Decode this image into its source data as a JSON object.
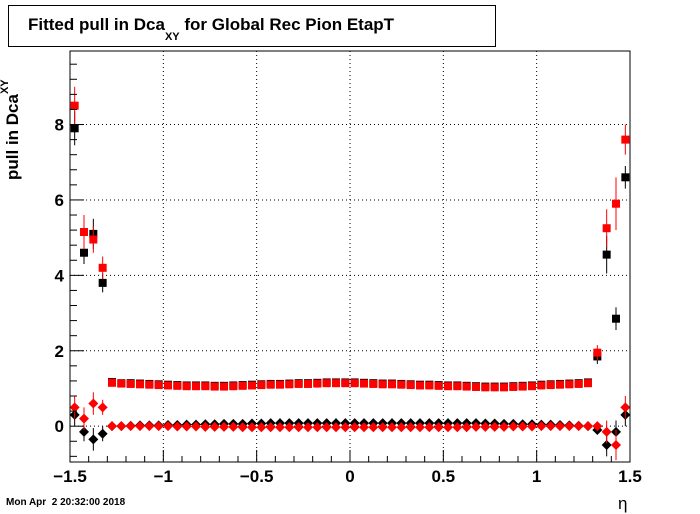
{
  "chart_data": {
    "type": "scatter",
    "title": "Fitted pull in Dca",
    "title_subscript": "XY",
    "title_suffix": " for Global Rec Pion EtapT",
    "ylabel": "pull in Dca",
    "ylabel_subscript": "XY",
    "xlabel": "η",
    "xlim": [
      -1.5,
      1.5
    ],
    "ylim": [
      -0.95,
      9.95
    ],
    "grid": true,
    "x_ticks": [
      -1.5,
      -1,
      -0.5,
      0,
      0.5,
      1,
      1.5
    ],
    "x_tick_labels": [
      "−1.5",
      "−1",
      "−0.5",
      "0",
      "0.5",
      "1",
      "1.5"
    ],
    "y_ticks": [
      0,
      2,
      4,
      6,
      8
    ],
    "y_tick_labels": [
      "0",
      "2",
      "4",
      "6",
      "8"
    ],
    "series": [
      {
        "marker": "square",
        "color": "#000000",
        "x": [
          -1.475,
          -1.425,
          -1.375,
          -1.325,
          -1.275,
          -1.225,
          -1.175,
          -1.125,
          -1.075,
          -1.025,
          -0.975,
          -0.925,
          -0.875,
          -0.825,
          -0.775,
          -0.725,
          -0.675,
          -0.625,
          -0.575,
          -0.525,
          -0.475,
          -0.425,
          -0.375,
          -0.325,
          -0.275,
          -0.225,
          -0.175,
          -0.125,
          -0.075,
          -0.025,
          0.025,
          0.075,
          0.125,
          0.175,
          0.225,
          0.275,
          0.325,
          0.375,
          0.425,
          0.475,
          0.525,
          0.575,
          0.625,
          0.675,
          0.725,
          0.775,
          0.825,
          0.875,
          0.925,
          0.975,
          1.025,
          1.075,
          1.125,
          1.175,
          1.225,
          1.275,
          1.325,
          1.375,
          1.425,
          1.475
        ],
        "y": [
          7.9,
          4.6,
          5.1,
          3.8,
          1.17,
          1.14,
          1.14,
          1.13,
          1.12,
          1.11,
          1.1,
          1.09,
          1.08,
          1.08,
          1.08,
          1.07,
          1.07,
          1.08,
          1.09,
          1.1,
          1.11,
          1.12,
          1.12,
          1.13,
          1.14,
          1.14,
          1.15,
          1.16,
          1.16,
          1.16,
          1.16,
          1.15,
          1.14,
          1.13,
          1.13,
          1.12,
          1.11,
          1.1,
          1.1,
          1.09,
          1.08,
          1.08,
          1.07,
          1.06,
          1.05,
          1.05,
          1.05,
          1.06,
          1.07,
          1.08,
          1.1,
          1.11,
          1.12,
          1.13,
          1.14,
          1.16,
          1.85,
          4.55,
          2.85,
          6.6
        ],
        "err": [
          0.45,
          0.3,
          0.4,
          0.25,
          0.04,
          0.03,
          0.03,
          0.03,
          0.03,
          0.03,
          0.03,
          0.03,
          0.03,
          0.03,
          0.03,
          0.03,
          0.03,
          0.03,
          0.03,
          0.03,
          0.03,
          0.03,
          0.03,
          0.03,
          0.03,
          0.03,
          0.03,
          0.03,
          0.03,
          0.03,
          0.03,
          0.03,
          0.03,
          0.03,
          0.03,
          0.03,
          0.03,
          0.03,
          0.03,
          0.03,
          0.03,
          0.03,
          0.03,
          0.03,
          0.03,
          0.03,
          0.03,
          0.03,
          0.03,
          0.03,
          0.03,
          0.03,
          0.03,
          0.03,
          0.03,
          0.04,
          0.2,
          0.5,
          0.3,
          0.3
        ]
      },
      {
        "marker": "square",
        "color": "#ff0000",
        "x": [
          -1.475,
          -1.425,
          -1.375,
          -1.325,
          -1.275,
          -1.225,
          -1.175,
          -1.125,
          -1.075,
          -1.025,
          -0.975,
          -0.925,
          -0.875,
          -0.825,
          -0.775,
          -0.725,
          -0.675,
          -0.625,
          -0.575,
          -0.525,
          -0.475,
          -0.425,
          -0.375,
          -0.325,
          -0.275,
          -0.225,
          -0.175,
          -0.125,
          -0.075,
          -0.025,
          0.025,
          0.075,
          0.125,
          0.175,
          0.225,
          0.275,
          0.325,
          0.375,
          0.425,
          0.475,
          0.525,
          0.575,
          0.625,
          0.675,
          0.725,
          0.775,
          0.825,
          0.875,
          0.925,
          0.975,
          1.025,
          1.075,
          1.125,
          1.175,
          1.225,
          1.275,
          1.325,
          1.375,
          1.425,
          1.475
        ],
        "y": [
          8.5,
          5.15,
          4.95,
          4.2,
          1.15,
          1.13,
          1.12,
          1.11,
          1.1,
          1.09,
          1.08,
          1.07,
          1.06,
          1.06,
          1.06,
          1.05,
          1.05,
          1.06,
          1.07,
          1.08,
          1.09,
          1.1,
          1.1,
          1.11,
          1.12,
          1.12,
          1.13,
          1.14,
          1.14,
          1.14,
          1.14,
          1.13,
          1.12,
          1.11,
          1.11,
          1.1,
          1.09,
          1.08,
          1.08,
          1.07,
          1.06,
          1.06,
          1.05,
          1.04,
          1.03,
          1.03,
          1.03,
          1.04,
          1.05,
          1.06,
          1.08,
          1.09,
          1.1,
          1.11,
          1.12,
          1.14,
          1.95,
          5.25,
          5.9,
          7.6
        ],
        "err": [
          0.5,
          0.45,
          0.35,
          0.3,
          0.04,
          0.03,
          0.03,
          0.03,
          0.03,
          0.03,
          0.03,
          0.03,
          0.03,
          0.03,
          0.03,
          0.03,
          0.03,
          0.03,
          0.03,
          0.03,
          0.03,
          0.03,
          0.03,
          0.03,
          0.03,
          0.03,
          0.03,
          0.03,
          0.03,
          0.03,
          0.03,
          0.03,
          0.03,
          0.03,
          0.03,
          0.03,
          0.03,
          0.03,
          0.03,
          0.03,
          0.03,
          0.03,
          0.03,
          0.03,
          0.03,
          0.03,
          0.03,
          0.03,
          0.03,
          0.03,
          0.03,
          0.03,
          0.03,
          0.03,
          0.03,
          0.04,
          0.2,
          0.5,
          0.7,
          0.4
        ]
      },
      {
        "marker": "diamond",
        "color": "#000000",
        "x": [
          -1.475,
          -1.425,
          -1.375,
          -1.325,
          -1.275,
          -1.225,
          -1.175,
          -1.125,
          -1.075,
          -1.025,
          -0.975,
          -0.925,
          -0.875,
          -0.825,
          -0.775,
          -0.725,
          -0.675,
          -0.625,
          -0.575,
          -0.525,
          -0.475,
          -0.425,
          -0.375,
          -0.325,
          -0.275,
          -0.225,
          -0.175,
          -0.125,
          -0.075,
          -0.025,
          0.025,
          0.075,
          0.125,
          0.175,
          0.225,
          0.275,
          0.325,
          0.375,
          0.425,
          0.475,
          0.525,
          0.575,
          0.625,
          0.675,
          0.725,
          0.775,
          0.825,
          0.875,
          0.925,
          0.975,
          1.025,
          1.075,
          1.125,
          1.175,
          1.225,
          1.275,
          1.325,
          1.375,
          1.425,
          1.475
        ],
        "y": [
          0.3,
          -0.15,
          -0.35,
          -0.2,
          0.0,
          0.0,
          0.01,
          0.02,
          0.02,
          0.02,
          0.03,
          0.03,
          0.04,
          0.04,
          0.05,
          0.05,
          0.06,
          0.06,
          0.06,
          0.07,
          0.07,
          0.08,
          0.08,
          0.08,
          0.08,
          0.08,
          0.08,
          0.08,
          0.08,
          0.08,
          0.08,
          0.08,
          0.08,
          0.08,
          0.08,
          0.08,
          0.08,
          0.08,
          0.08,
          0.08,
          0.08,
          0.08,
          0.08,
          0.08,
          0.07,
          0.07,
          0.06,
          0.06,
          0.05,
          0.05,
          0.04,
          0.04,
          0.03,
          0.02,
          0.01,
          0.0,
          -0.1,
          -0.5,
          -0.15,
          0.3
        ],
        "err": [
          0.3,
          0.25,
          0.3,
          0.2,
          0.02,
          0.02,
          0.02,
          0.02,
          0.02,
          0.02,
          0.02,
          0.02,
          0.02,
          0.02,
          0.02,
          0.02,
          0.02,
          0.02,
          0.02,
          0.02,
          0.02,
          0.02,
          0.02,
          0.02,
          0.02,
          0.02,
          0.02,
          0.02,
          0.02,
          0.02,
          0.02,
          0.02,
          0.02,
          0.02,
          0.02,
          0.02,
          0.02,
          0.02,
          0.02,
          0.02,
          0.02,
          0.02,
          0.02,
          0.02,
          0.02,
          0.02,
          0.02,
          0.02,
          0.02,
          0.02,
          0.02,
          0.02,
          0.02,
          0.02,
          0.02,
          0.02,
          0.1,
          0.3,
          0.3,
          0.3
        ]
      },
      {
        "marker": "diamond",
        "color": "#ff0000",
        "x": [
          -1.475,
          -1.425,
          -1.375,
          -1.325,
          -1.275,
          -1.225,
          -1.175,
          -1.125,
          -1.075,
          -1.025,
          -0.975,
          -0.925,
          -0.875,
          -0.825,
          -0.775,
          -0.725,
          -0.675,
          -0.625,
          -0.575,
          -0.525,
          -0.475,
          -0.425,
          -0.375,
          -0.325,
          -0.275,
          -0.225,
          -0.175,
          -0.125,
          -0.075,
          -0.025,
          0.025,
          0.075,
          0.125,
          0.175,
          0.225,
          0.275,
          0.325,
          0.375,
          0.425,
          0.475,
          0.525,
          0.575,
          0.625,
          0.675,
          0.725,
          0.775,
          0.825,
          0.875,
          0.925,
          0.975,
          1.025,
          1.075,
          1.125,
          1.175,
          1.225,
          1.275,
          1.325,
          1.375,
          1.425,
          1.475
        ],
        "y": [
          0.5,
          0.2,
          0.6,
          0.5,
          0.0,
          0.0,
          0.0,
          0.0,
          0.0,
          0.0,
          0.0,
          -0.01,
          -0.01,
          -0.01,
          -0.02,
          -0.02,
          -0.02,
          -0.02,
          -0.03,
          -0.03,
          -0.03,
          -0.03,
          -0.03,
          -0.03,
          -0.03,
          -0.03,
          -0.03,
          -0.03,
          -0.03,
          -0.03,
          -0.03,
          -0.03,
          -0.03,
          -0.03,
          -0.03,
          -0.03,
          -0.03,
          -0.03,
          -0.03,
          -0.03,
          -0.03,
          -0.03,
          -0.03,
          -0.02,
          -0.02,
          -0.02,
          -0.02,
          -0.01,
          -0.01,
          -0.01,
          0.0,
          0.0,
          0.0,
          0.0,
          0.0,
          0.0,
          0.0,
          -0.15,
          -0.5,
          0.5
        ],
        "err": [
          0.3,
          0.3,
          0.3,
          0.2,
          0.02,
          0.02,
          0.02,
          0.02,
          0.02,
          0.02,
          0.02,
          0.02,
          0.02,
          0.02,
          0.02,
          0.02,
          0.02,
          0.02,
          0.02,
          0.02,
          0.02,
          0.02,
          0.02,
          0.02,
          0.02,
          0.02,
          0.02,
          0.02,
          0.02,
          0.02,
          0.02,
          0.02,
          0.02,
          0.02,
          0.02,
          0.02,
          0.02,
          0.02,
          0.02,
          0.02,
          0.02,
          0.02,
          0.02,
          0.02,
          0.02,
          0.02,
          0.02,
          0.02,
          0.02,
          0.02,
          0.02,
          0.02,
          0.02,
          0.02,
          0.02,
          0.02,
          0.1,
          0.3,
          0.4,
          0.3
        ]
      }
    ]
  },
  "timestamp": "Mon Apr  2 20:32:00 2018"
}
